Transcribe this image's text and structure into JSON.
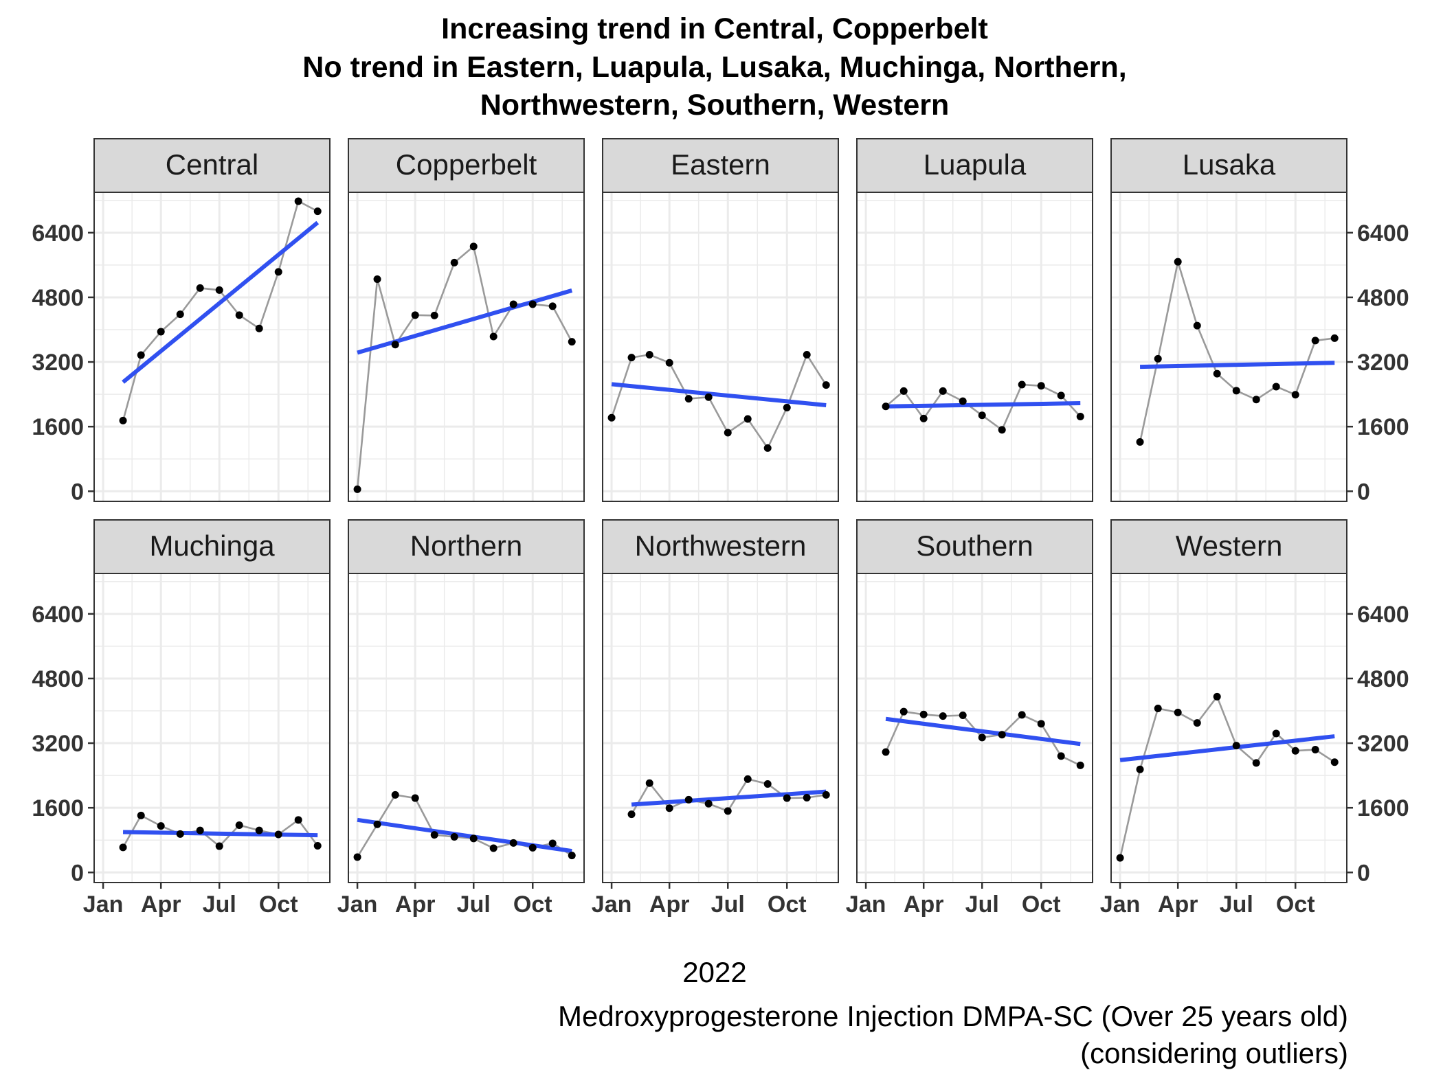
{
  "chart_data": {
    "type": "line",
    "title_lines": [
      "Increasing trend in Central, Copperbelt",
      "No trend in Eastern, Luapula, Lusaka, Muchinga, Northern,",
      "Northwestern, Southern, Western"
    ],
    "xlabel": "2022",
    "caption_lines": [
      "Medroxyprogesterone Injection DMPA-SC (Over 25 years old)",
      "(considering outliers)"
    ],
    "x_ticks": [
      "Jan",
      "Apr",
      "Jul",
      "Oct"
    ],
    "y_ticks": [
      "0",
      "1600",
      "3200",
      "4800",
      "6400"
    ],
    "ylim": [
      -250,
      7400
    ],
    "grid": true,
    "colors": {
      "trend": "#3050f0",
      "series_line": "#9a9a9a",
      "points": "#000000",
      "strip_fill": "#d9d9d9",
      "grid": "#ebebeb"
    },
    "panels": [
      {
        "name": "Central",
        "x": [
          "2022-02",
          "2022-03",
          "2022-04",
          "2022-05",
          "2022-06",
          "2022-07",
          "2022-08",
          "2022-09",
          "2022-10",
          "2022-11",
          "2022-12"
        ],
        "values": [
          1750,
          3370,
          3950,
          4380,
          5030,
          4980,
          4360,
          4030,
          5430,
          7180,
          6930
        ],
        "trend": [
          2700,
          6650
        ]
      },
      {
        "name": "Copperbelt",
        "x": [
          "2022-01",
          "2022-02",
          "2022-03",
          "2022-04",
          "2022-05",
          "2022-06",
          "2022-07",
          "2022-08",
          "2022-09",
          "2022-10",
          "2022-11",
          "2022-12"
        ],
        "values": [
          50,
          5250,
          3630,
          4360,
          4350,
          5660,
          6060,
          3830,
          4630,
          4630,
          4580,
          3700
        ],
        "trend": [
          3430,
          4970
        ]
      },
      {
        "name": "Eastern",
        "x": [
          "2022-01",
          "2022-02",
          "2022-03",
          "2022-04",
          "2022-05",
          "2022-06",
          "2022-07",
          "2022-08",
          "2022-09",
          "2022-10",
          "2022-11",
          "2022-12"
        ],
        "values": [
          1820,
          3310,
          3380,
          3180,
          2290,
          2330,
          1450,
          1790,
          1070,
          2070,
          3380,
          2630
        ],
        "trend": [
          2650,
          2130
        ]
      },
      {
        "name": "Luapula",
        "x": [
          "2022-02",
          "2022-03",
          "2022-04",
          "2022-05",
          "2022-06",
          "2022-07",
          "2022-08",
          "2022-09",
          "2022-10",
          "2022-11",
          "2022-12"
        ],
        "values": [
          2100,
          2480,
          1800,
          2480,
          2230,
          1880,
          1520,
          2640,
          2610,
          2370,
          1850
        ],
        "trend": [
          2100,
          2180
        ]
      },
      {
        "name": "Lusaka",
        "x": [
          "2022-02",
          "2022-03",
          "2022-04",
          "2022-05",
          "2022-06",
          "2022-07",
          "2022-08",
          "2022-09",
          "2022-10",
          "2022-11",
          "2022-12"
        ],
        "values": [
          1220,
          3280,
          5680,
          4100,
          2910,
          2490,
          2270,
          2590,
          2390,
          3730,
          3790
        ],
        "trend": [
          3080,
          3180
        ]
      },
      {
        "name": "Muchinga",
        "x": [
          "2022-02",
          "2022-03",
          "2022-04",
          "2022-05",
          "2022-06",
          "2022-07",
          "2022-08",
          "2022-09",
          "2022-10",
          "2022-11",
          "2022-12"
        ],
        "values": [
          620,
          1410,
          1150,
          950,
          1040,
          650,
          1170,
          1040,
          940,
          1300,
          660
        ],
        "trend": [
          1000,
          920
        ]
      },
      {
        "name": "Northern",
        "x": [
          "2022-01",
          "2022-02",
          "2022-03",
          "2022-04",
          "2022-05",
          "2022-06",
          "2022-07",
          "2022-08",
          "2022-09",
          "2022-10",
          "2022-11",
          "2022-12"
        ],
        "values": [
          380,
          1190,
          1920,
          1840,
          930,
          880,
          840,
          600,
          730,
          610,
          720,
          420
        ],
        "trend": [
          1300,
          530
        ]
      },
      {
        "name": "Northwestern",
        "x": [
          "2022-02",
          "2022-03",
          "2022-04",
          "2022-05",
          "2022-06",
          "2022-07",
          "2022-08",
          "2022-09",
          "2022-10",
          "2022-11",
          "2022-12"
        ],
        "values": [
          1440,
          2210,
          1590,
          1800,
          1700,
          1520,
          2310,
          2190,
          1840,
          1850,
          1920
        ],
        "trend": [
          1680,
          2000
        ]
      },
      {
        "name": "Southern",
        "x": [
          "2022-02",
          "2022-03",
          "2022-04",
          "2022-05",
          "2022-06",
          "2022-07",
          "2022-08",
          "2022-09",
          "2022-10",
          "2022-11",
          "2022-12"
        ],
        "values": [
          2980,
          3980,
          3910,
          3870,
          3890,
          3340,
          3410,
          3900,
          3680,
          2880,
          2650
        ],
        "trend": [
          3800,
          3180
        ]
      },
      {
        "name": "Western",
        "x": [
          "2022-01",
          "2022-02",
          "2022-03",
          "2022-04",
          "2022-05",
          "2022-06",
          "2022-07",
          "2022-08",
          "2022-09",
          "2022-10",
          "2022-11",
          "2022-12"
        ],
        "values": [
          360,
          2550,
          4060,
          3960,
          3700,
          4350,
          3140,
          2710,
          3440,
          3010,
          3040,
          2730
        ],
        "trend": [
          2780,
          3370
        ]
      }
    ]
  }
}
